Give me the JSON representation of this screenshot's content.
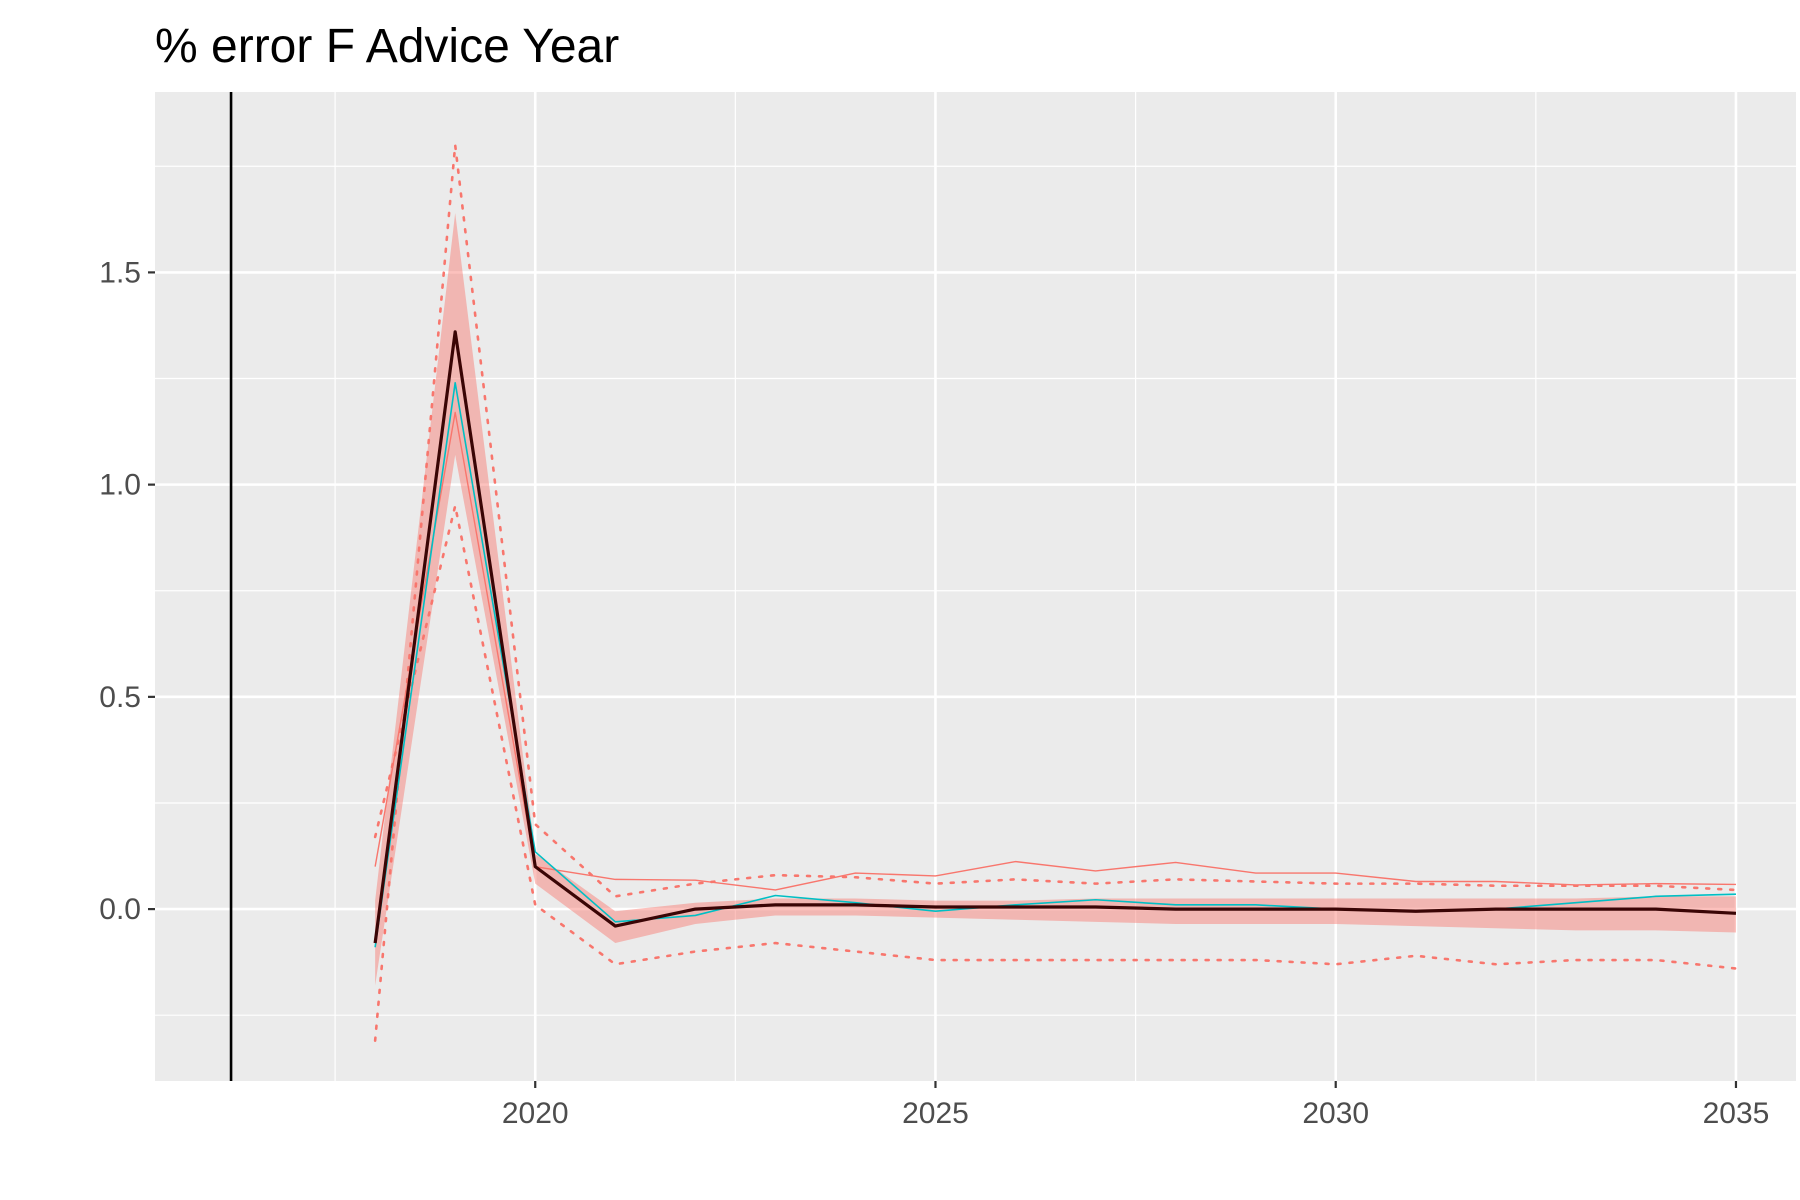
{
  "chart_data": {
    "type": "line",
    "title": "% error F Advice Year",
    "xlabel": "",
    "ylabel": "",
    "xlim": [
      2015.25,
      2035.75
    ],
    "ylim": [
      -0.405,
      1.925
    ],
    "x_ticks": [
      2020,
      2025,
      2030,
      2035
    ],
    "x_tick_labels": [
      "2020",
      "2025",
      "2030",
      "2035"
    ],
    "y_ticks": [
      0,
      0.5,
      1.0,
      1.5
    ],
    "y_tick_labels": [
      "0.0",
      "0.5",
      "1.0",
      "1.5"
    ],
    "grid": true,
    "vline_x": 2016.2,
    "x": [
      2018,
      2019,
      2020,
      2021,
      2022,
      2023,
      2024,
      2025,
      2026,
      2027,
      2028,
      2029,
      2030,
      2031,
      2032,
      2033,
      2034,
      2035
    ],
    "band": {
      "lower": [
        -0.18,
        1.07,
        0.06,
        -0.08,
        -0.035,
        -0.015,
        -0.015,
        -0.02,
        -0.025,
        -0.03,
        -0.035,
        -0.035,
        -0.035,
        -0.04,
        -0.045,
        -0.05,
        -0.05,
        -0.055
      ],
      "upper": [
        0.02,
        1.64,
        0.13,
        -0.005,
        0.015,
        0.025,
        0.025,
        0.02,
        0.02,
        0.025,
        0.025,
        0.025,
        0.025,
        0.025,
        0.025,
        0.025,
        0.03,
        0.03
      ]
    },
    "series": [
      {
        "style": "dotted-red",
        "values": [
          -0.31,
          1.8,
          0.2,
          0.03,
          0.06,
          0.08,
          0.075,
          0.06,
          0.07,
          0.06,
          0.07,
          0.065,
          0.06,
          0.06,
          0.055,
          0.055,
          0.055,
          0.045
        ]
      },
      {
        "style": "dotted-red",
        "values": [
          0.17,
          0.95,
          0.01,
          -0.13,
          -0.1,
          -0.08,
          -0.1,
          -0.12,
          -0.12,
          -0.12,
          -0.12,
          -0.12,
          -0.13,
          -0.11,
          -0.13,
          -0.12,
          -0.12,
          -0.14
        ]
      },
      {
        "style": "thin-red",
        "values": [
          0.1,
          1.17,
          0.1,
          0.07,
          0.068,
          0.045,
          0.085,
          0.078,
          0.112,
          0.09,
          0.11,
          0.085,
          0.085,
          0.065,
          0.065,
          0.057,
          0.06,
          0.058
        ]
      },
      {
        "style": "thin-teal",
        "values": [
          -0.09,
          1.24,
          0.135,
          -0.03,
          -0.015,
          0.032,
          0.015,
          -0.005,
          0.01,
          0.022,
          0.01,
          0.01,
          0.0,
          -0.005,
          0.0,
          0.015,
          0.03,
          0.035
        ]
      },
      {
        "style": "thick-dark",
        "values": [
          -0.08,
          1.36,
          0.1,
          -0.04,
          0.0,
          0.01,
          0.01,
          0.005,
          0.005,
          0.005,
          0.0,
          0.0,
          0.0,
          -0.005,
          0.0,
          0.0,
          0.0,
          -0.01
        ]
      }
    ]
  },
  "colors": {
    "panel_background": "#ebebeb",
    "grid_major": "#ffffff",
    "band_fill": "#f8766d",
    "band_opacity": 0.45,
    "dotted_line": "#f8766d",
    "thin_red_line": "#f8766d",
    "teal_line": "#00bfc4",
    "thick_line": "#3a0505",
    "vline": "#000000",
    "tick_text": "#4d4d4d",
    "tick_mark": "#333333"
  }
}
